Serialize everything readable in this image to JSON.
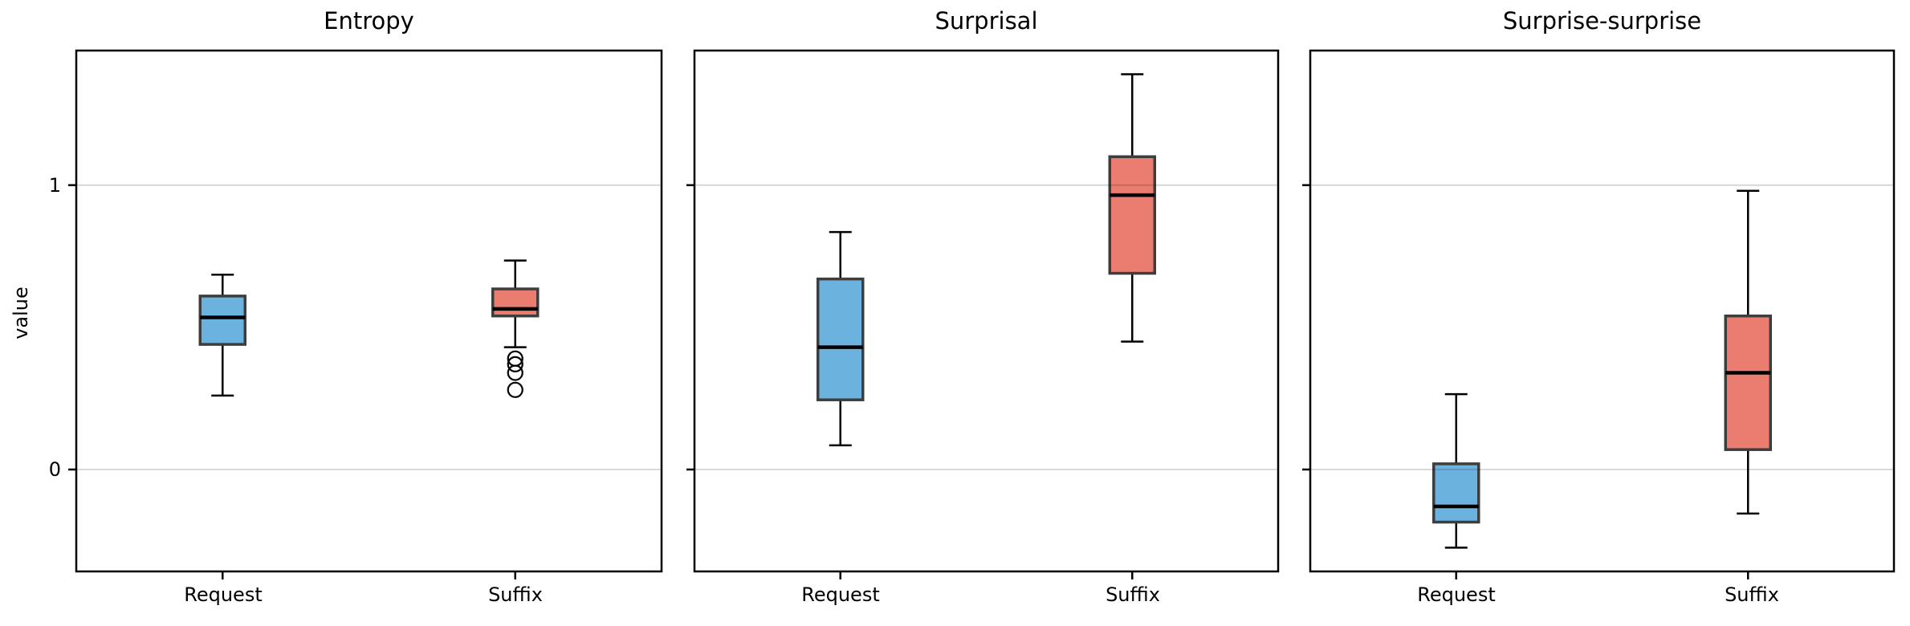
{
  "figure": {
    "background": "#FFFFFF"
  },
  "y_axis": {
    "label": "value",
    "ticks": [
      0,
      1
    ],
    "tick_labels": [
      "0",
      "1"
    ],
    "ylim": [
      -0.36,
      1.47
    ],
    "grid": true,
    "grid_color": "#D4D4D4"
  },
  "x_axis": {
    "categories": [
      "Request",
      "Suffix"
    ]
  },
  "colors": {
    "request_fill": "#6CB2DF",
    "suffix_fill": "#EA7D70",
    "box_edge": "#3D3D3D",
    "median": "#000000",
    "whisker": "#000000",
    "outlier_edge": "#000000",
    "spine": "#000000"
  },
  "chart_data": [
    {
      "type": "box",
      "title": "Entropy",
      "categories": [
        "Request",
        "Suffix"
      ],
      "series": [
        {
          "name": "Request",
          "whislo": 0.26,
          "q1": 0.44,
          "med": 0.535,
          "q3": 0.61,
          "whishi": 0.685,
          "outliers": []
        },
        {
          "name": "Suffix",
          "whislo": 0.43,
          "q1": 0.54,
          "med": 0.565,
          "q3": 0.635,
          "whishi": 0.735,
          "outliers": [
            0.39,
            0.37,
            0.34,
            0.28
          ]
        }
      ]
    },
    {
      "type": "box",
      "title": "Surprisal",
      "categories": [
        "Request",
        "Suffix"
      ],
      "series": [
        {
          "name": "Request",
          "whislo": 0.085,
          "q1": 0.245,
          "med": 0.43,
          "q3": 0.67,
          "whishi": 0.835,
          "outliers": []
        },
        {
          "name": "Suffix",
          "whislo": 0.45,
          "q1": 0.69,
          "med": 0.965,
          "q3": 1.1,
          "whishi": 1.39,
          "outliers": []
        }
      ]
    },
    {
      "type": "box",
      "title": "Surprise-surprise",
      "categories": [
        "Request",
        "Suffix"
      ],
      "series": [
        {
          "name": "Request",
          "whislo": -0.275,
          "q1": -0.185,
          "med": -0.13,
          "q3": 0.02,
          "whishi": 0.265,
          "outliers": []
        },
        {
          "name": "Suffix",
          "whislo": -0.155,
          "q1": 0.07,
          "med": 0.34,
          "q3": 0.54,
          "whishi": 0.98,
          "outliers": []
        }
      ]
    }
  ]
}
